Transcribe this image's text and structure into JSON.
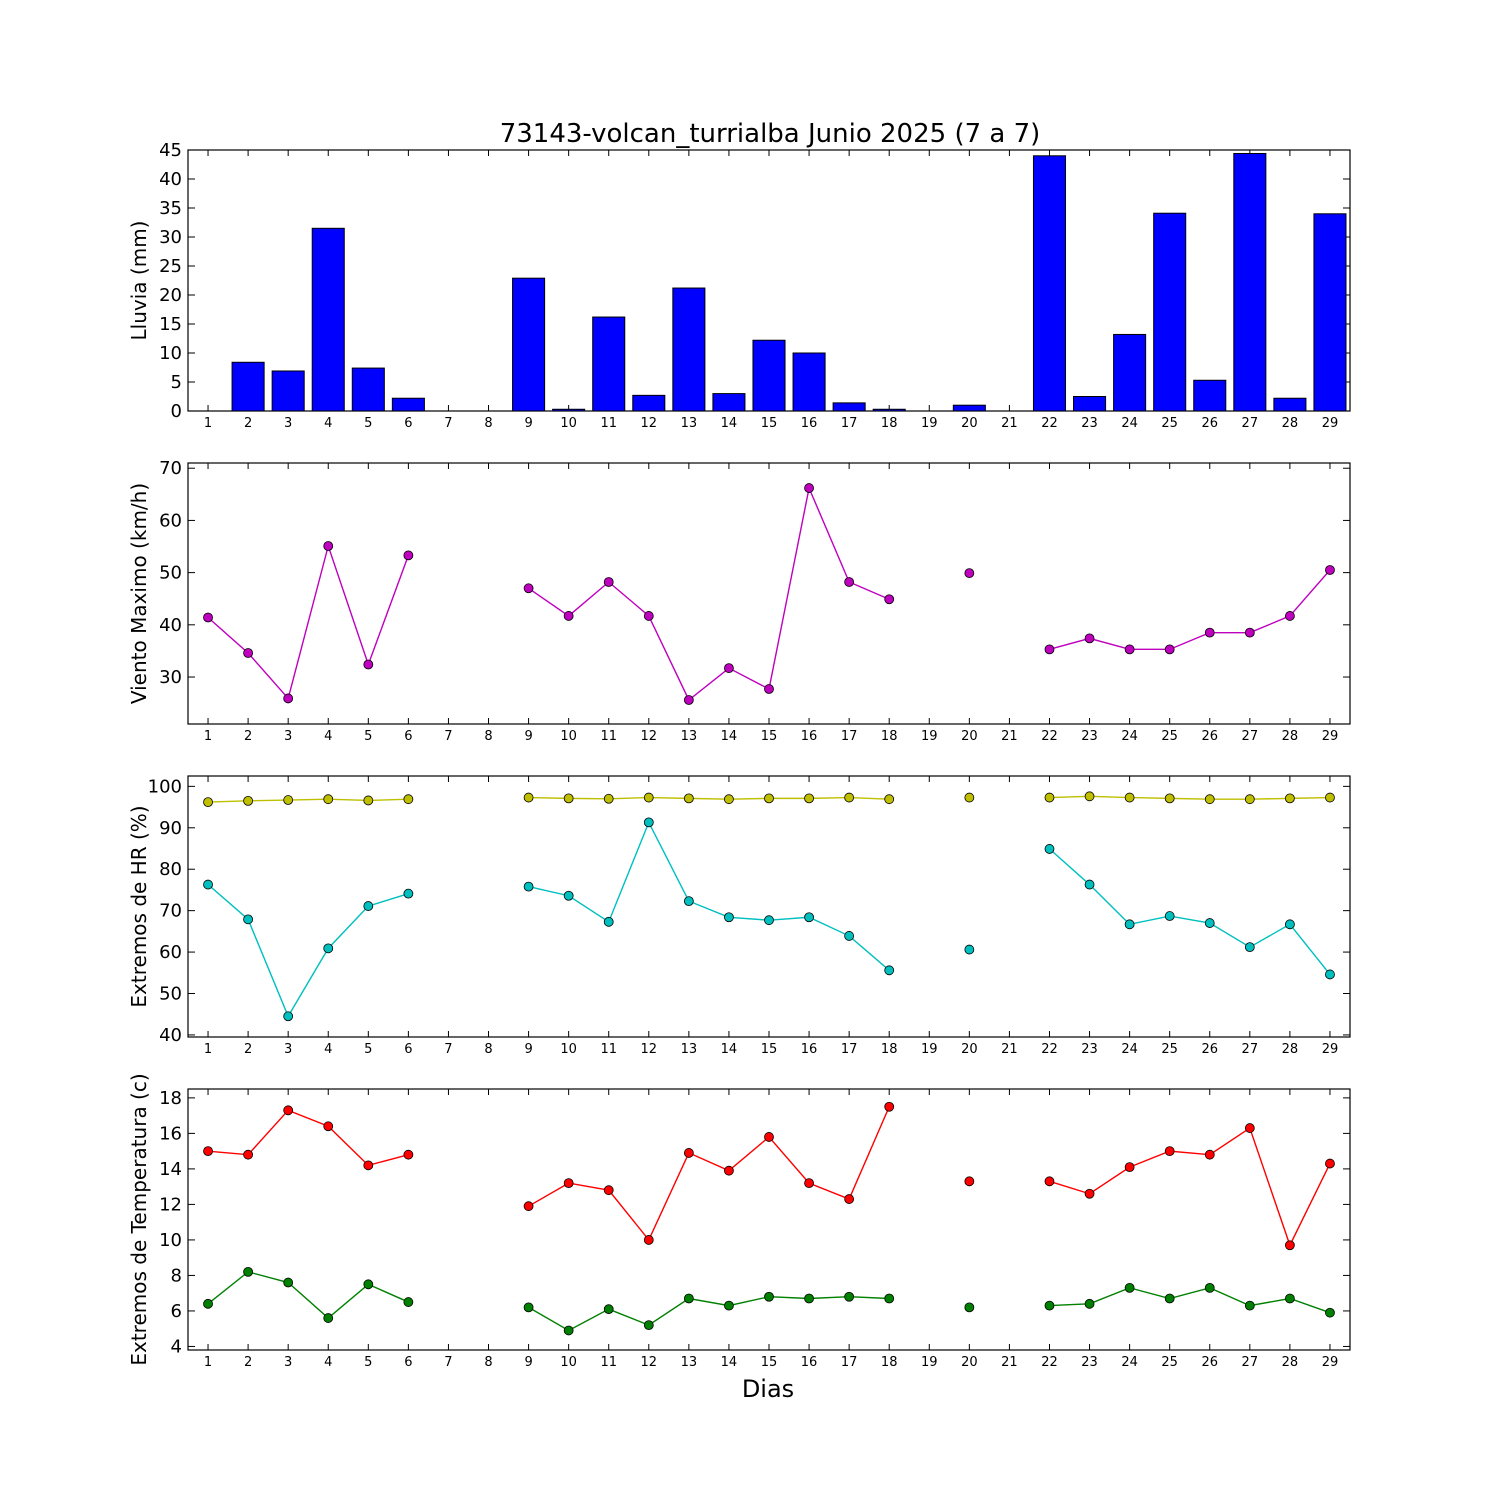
{
  "chart_data": [
    {
      "type": "bar",
      "title": "73143-volcan_turrialba Junio 2025  (7 a 7)",
      "ylabel": "Lluvia (mm)",
      "xlabel": "",
      "ylim": [
        0,
        45
      ],
      "yticks": [
        0,
        5,
        10,
        15,
        20,
        25,
        30,
        35,
        40,
        45
      ],
      "x": [
        1,
        2,
        3,
        4,
        5,
        6,
        7,
        8,
        9,
        10,
        11,
        12,
        13,
        14,
        15,
        16,
        17,
        18,
        19,
        20,
        21,
        22,
        23,
        24,
        25,
        26,
        27,
        28,
        29
      ],
      "series": [
        {
          "color": "#0000ff",
          "values": [
            0,
            8.4,
            6.9,
            31.5,
            7.4,
            2.2,
            0,
            0,
            22.9,
            0.3,
            16.2,
            2.7,
            21.2,
            3.0,
            12.2,
            10.0,
            1.4,
            0.3,
            0,
            1.0,
            0,
            44.0,
            2.5,
            13.2,
            34.1,
            5.3,
            44.4,
            2.2,
            34.0
          ]
        }
      ]
    },
    {
      "type": "line",
      "title": "",
      "ylabel": "Viento Maximo (km/h)",
      "xlabel": "",
      "ylim": [
        21,
        71
      ],
      "yticks": [
        30,
        40,
        50,
        60,
        70
      ],
      "x": [
        1,
        2,
        3,
        4,
        5,
        6,
        7,
        8,
        9,
        10,
        11,
        12,
        13,
        14,
        15,
        16,
        17,
        18,
        19,
        20,
        21,
        22,
        23,
        24,
        25,
        26,
        27,
        28,
        29
      ],
      "series": [
        {
          "color": "#bf00bf",
          "values": [
            41.4,
            34.6,
            25.9,
            55.1,
            32.4,
            53.3,
            null,
            null,
            47.0,
            41.7,
            48.2,
            41.7,
            25.6,
            31.7,
            27.7,
            66.2,
            48.2,
            44.9,
            null,
            49.9,
            null,
            35.3,
            37.4,
            35.3,
            35.3,
            38.5,
            38.5,
            41.7,
            50.5
          ]
        }
      ]
    },
    {
      "type": "line",
      "title": "",
      "ylabel": "Extremos de HR (%)",
      "xlabel": "",
      "ylim": [
        39.5,
        102.5
      ],
      "yticks": [
        40,
        50,
        60,
        70,
        80,
        90,
        100
      ],
      "x": [
        1,
        2,
        3,
        4,
        5,
        6,
        7,
        8,
        9,
        10,
        11,
        12,
        13,
        14,
        15,
        16,
        17,
        18,
        19,
        20,
        21,
        22,
        23,
        24,
        25,
        26,
        27,
        28,
        29
      ],
      "series": [
        {
          "color": "#bfbf00",
          "values": [
            96.2,
            96.5,
            96.7,
            96.9,
            96.6,
            96.9,
            null,
            null,
            97.3,
            97.1,
            97.0,
            97.3,
            97.1,
            96.9,
            97.1,
            97.1,
            97.3,
            96.9,
            null,
            97.3,
            null,
            97.3,
            97.6,
            97.3,
            97.1,
            96.9,
            96.9,
            97.1,
            97.3
          ]
        },
        {
          "color": "#00bfbf",
          "values": [
            76.3,
            67.9,
            44.5,
            60.9,
            71.1,
            74.1,
            null,
            null,
            75.8,
            73.6,
            67.3,
            91.3,
            72.3,
            68.4,
            67.7,
            68.4,
            63.9,
            55.6,
            null,
            60.6,
            null,
            84.9,
            76.3,
            66.7,
            68.7,
            67.0,
            61.2,
            66.7,
            54.6
          ]
        }
      ]
    },
    {
      "type": "line",
      "title": "",
      "ylabel": "Extremos de Temperatura (c)",
      "xlabel": "Dias",
      "ylim": [
        3.8,
        18.5
      ],
      "yticks": [
        4,
        6,
        8,
        10,
        12,
        14,
        16,
        18
      ],
      "x": [
        1,
        2,
        3,
        4,
        5,
        6,
        7,
        8,
        9,
        10,
        11,
        12,
        13,
        14,
        15,
        16,
        17,
        18,
        19,
        20,
        21,
        22,
        23,
        24,
        25,
        26,
        27,
        28,
        29
      ],
      "series": [
        {
          "color": "#ff0000",
          "values": [
            15.0,
            14.8,
            17.3,
            16.4,
            14.2,
            14.8,
            null,
            null,
            11.9,
            13.2,
            12.8,
            10.0,
            14.9,
            13.9,
            15.8,
            13.2,
            12.3,
            17.5,
            null,
            13.3,
            null,
            13.3,
            12.6,
            14.1,
            15.0,
            14.8,
            16.3,
            9.7,
            14.3
          ]
        },
        {
          "color": "#008000",
          "values": [
            6.4,
            8.2,
            7.6,
            5.6,
            7.5,
            6.5,
            null,
            null,
            6.2,
            4.9,
            6.1,
            5.2,
            6.7,
            6.3,
            6.8,
            6.7,
            6.8,
            6.7,
            null,
            6.2,
            null,
            6.3,
            6.4,
            7.3,
            6.7,
            7.3,
            6.3,
            6.7,
            5.9
          ]
        }
      ]
    }
  ]
}
